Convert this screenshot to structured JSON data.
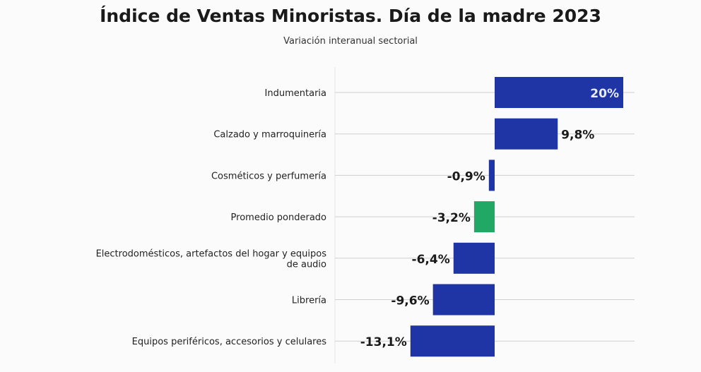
{
  "chart_data": {
    "type": "bar",
    "orientation": "horizontal",
    "title": "Índice de Ventas Minoristas. Día de la madre 2023",
    "subtitle": "Variación interanual sectorial",
    "categories": [
      "Indumentaria",
      "Calzado y marroquinería",
      "Cosméticos y perfumería",
      "Promedio ponderado",
      "Electrodomésticos, artefactos del hogar y equipos de audio",
      "Librería",
      "Equipos periféricos, accesorios y celulares"
    ],
    "values": [
      20,
      9.8,
      -0.9,
      -3.2,
      -6.4,
      -9.6,
      -13.1
    ],
    "data_labels": [
      "20%",
      "9,8%",
      "-0,9%",
      "-3,2%",
      "-6,4%",
      "-9,6%",
      "-13,1%"
    ],
    "bar_colors": [
      "#1f35a5",
      "#1f35a5",
      "#1f35a5",
      "#22a865",
      "#1f35a5",
      "#1f35a5",
      "#1f35a5"
    ],
    "grid": true,
    "xlim": [
      -15,
      22
    ]
  }
}
